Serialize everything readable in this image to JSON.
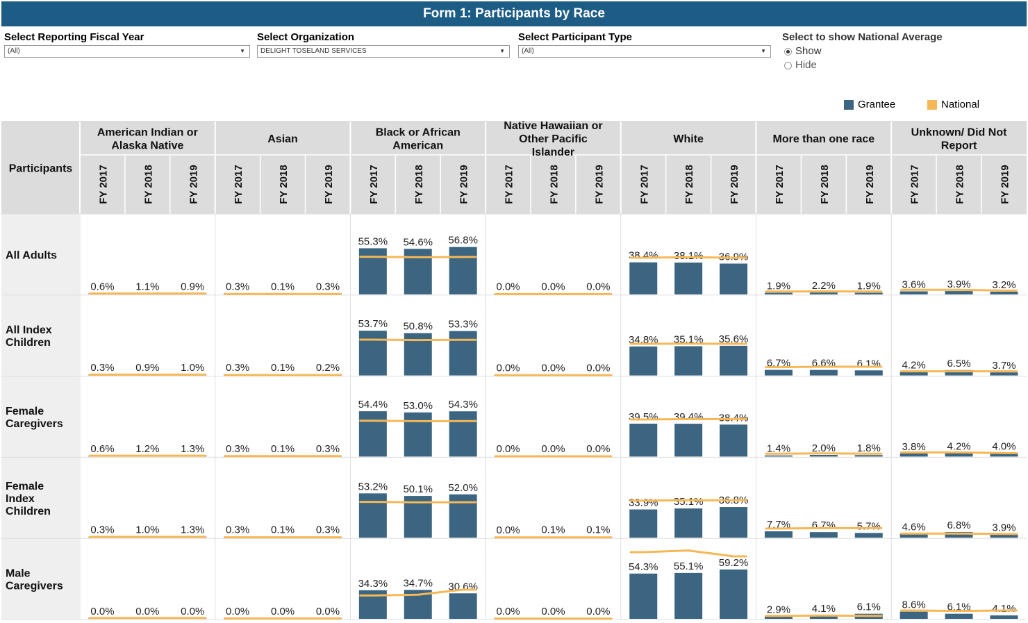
{
  "title": "Form 1: Participants by Race",
  "filters": {
    "fiscal_year": {
      "label": "Select Reporting Fiscal Year",
      "value": "(All)"
    },
    "organization": {
      "label": "Select Organization",
      "value": "DELIGHT TOSELAND SERVICES"
    },
    "participant_type": {
      "label": "Select Participant Type",
      "value": "(All)"
    },
    "national_average": {
      "label": "Select to show National Average",
      "options": [
        "Show",
        "Hide"
      ],
      "selected": "Show"
    }
  },
  "legend": {
    "grantee_label": "Grantee",
    "national_label": "National"
  },
  "colors": {
    "grantee": "#3b6580",
    "national": "#f6b756",
    "header_bg": "#dcdcdc",
    "title_bg": "#1d5c85"
  },
  "chart_data": {
    "type": "bar",
    "row_header": "Participants",
    "races": [
      "American Indian or Alaska Native",
      "Asian",
      "Black or African American",
      "Native Hawaiian or Other Pacific Islander",
      "White",
      "More than one race",
      "Unknown/ Did Not Report"
    ],
    "years": [
      "FY 2017",
      "FY 2018",
      "FY 2019"
    ],
    "unit": "%",
    "rows": [
      {
        "name": "All Adults",
        "grantee": [
          [
            0.6,
            1.1,
            0.9
          ],
          [
            0.3,
            0.1,
            0.3
          ],
          [
            55.3,
            54.6,
            56.8
          ],
          [
            0.0,
            0.0,
            0.0
          ],
          [
            38.4,
            38.1,
            36.9
          ],
          [
            1.9,
            2.2,
            1.9
          ],
          [
            3.6,
            3.9,
            3.2
          ]
        ],
        "national": [
          [
            1.0,
            1.0,
            1.0
          ],
          [
            0.4,
            0.4,
            0.4
          ],
          [
            45.0,
            44.5,
            44.8
          ],
          [
            0.3,
            0.3,
            0.3
          ],
          [
            44.0,
            44.5,
            44.0
          ],
          [
            3.3,
            3.6,
            3.4
          ],
          [
            5.5,
            5.5,
            4.5
          ]
        ]
      },
      {
        "name": "All Index Children",
        "grantee": [
          [
            0.3,
            0.9,
            1.0
          ],
          [
            0.3,
            0.1,
            0.2
          ],
          [
            53.7,
            50.8,
            53.3
          ],
          [
            0.0,
            0.0,
            0.0
          ],
          [
            34.8,
            35.1,
            35.6
          ],
          [
            6.7,
            6.6,
            6.1
          ],
          [
            4.2,
            6.5,
            3.7
          ]
        ],
        "national": [
          [
            1.0,
            1.0,
            1.0
          ],
          [
            0.5,
            0.5,
            0.5
          ],
          [
            43.0,
            42.5,
            42.8
          ],
          [
            0.3,
            0.3,
            0.3
          ],
          [
            38.0,
            38.2,
            38.0
          ],
          [
            10.0,
            10.5,
            10.5
          ],
          [
            5.0,
            5.0,
            5.0
          ]
        ]
      },
      {
        "name": "Female Caregivers",
        "grantee": [
          [
            0.6,
            1.2,
            1.3
          ],
          [
            0.3,
            0.1,
            0.3
          ],
          [
            54.4,
            53.0,
            54.3
          ],
          [
            0.0,
            0.0,
            0.0
          ],
          [
            39.5,
            39.4,
            38.4
          ],
          [
            1.4,
            2.0,
            1.8
          ],
          [
            3.8,
            4.2,
            4.0
          ]
        ],
        "national": [
          [
            1.1,
            1.1,
            1.1
          ],
          [
            0.5,
            0.5,
            0.5
          ],
          [
            43.0,
            42.5,
            42.6
          ],
          [
            0.3,
            0.3,
            0.3
          ],
          [
            44.5,
            45.0,
            45.0
          ],
          [
            3.5,
            3.8,
            3.5
          ],
          [
            5.0,
            5.0,
            4.2
          ]
        ]
      },
      {
        "name": "Female Index Children",
        "grantee": [
          [
            0.3,
            1.0,
            1.3
          ],
          [
            0.3,
            0.1,
            0.3
          ],
          [
            53.2,
            50.1,
            52.0
          ],
          [
            0.0,
            0.1,
            0.1
          ],
          [
            33.9,
            35.1,
            36.8
          ],
          [
            7.7,
            6.7,
            5.7
          ],
          [
            4.6,
            6.8,
            3.9
          ]
        ],
        "national": [
          [
            1.0,
            1.0,
            1.0
          ],
          [
            0.5,
            0.5,
            0.5
          ],
          [
            43.0,
            42.5,
            42.6
          ],
          [
            0.3,
            0.3,
            0.3
          ],
          [
            44.5,
            44.8,
            44.8
          ],
          [
            11.0,
            11.5,
            11.5
          ],
          [
            5.0,
            5.0,
            4.5
          ]
        ]
      },
      {
        "name": "Male Caregivers",
        "grantee": [
          [
            0.0,
            0.0,
            0.0
          ],
          [
            0.0,
            0.0,
            0.0
          ],
          [
            34.3,
            34.7,
            30.6
          ],
          [
            0.0,
            0.0,
            0.0
          ],
          [
            54.3,
            55.1,
            59.2
          ],
          [
            2.9,
            4.1,
            6.1
          ],
          [
            8.6,
            6.1,
            4.1
          ]
        ],
        "national": [
          [
            1.0,
            1.0,
            1.0
          ],
          [
            0.5,
            0.5,
            0.5
          ],
          [
            28.0,
            29.0,
            35.0
          ],
          [
            0.2,
            0.2,
            0.2
          ],
          [
            80.0,
            82.0,
            75.0
          ],
          [
            3.5,
            4.0,
            3.5
          ],
          [
            10.0,
            9.5,
            10.0
          ]
        ]
      }
    ]
  }
}
